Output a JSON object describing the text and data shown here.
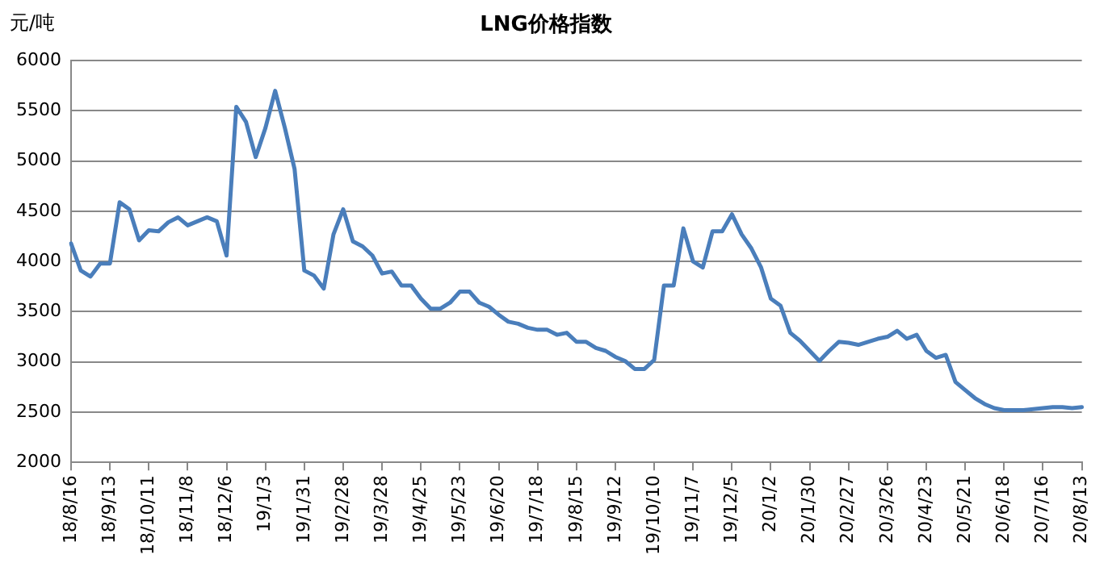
{
  "chart_data": {
    "type": "line",
    "title": "LNG价格指数",
    "ylabel": "元/吨",
    "categories": [
      "18/8/16",
      null,
      null,
      null,
      "18/9/13",
      null,
      null,
      null,
      "18/10/11",
      null,
      null,
      null,
      "18/11/8",
      null,
      null,
      null,
      "18/12/6",
      null,
      null,
      null,
      "19/1/3",
      null,
      null,
      null,
      "19/1/31",
      null,
      null,
      null,
      "19/2/28",
      null,
      null,
      null,
      "19/3/28",
      null,
      null,
      null,
      "19/4/25",
      null,
      null,
      null,
      "19/5/23",
      null,
      null,
      null,
      "19/6/20",
      null,
      null,
      null,
      "19/7/18",
      null,
      null,
      null,
      "19/8/15",
      null,
      null,
      null,
      "19/9/12",
      null,
      null,
      null,
      "19/10/10",
      null,
      null,
      null,
      "19/11/7",
      null,
      null,
      null,
      "19/12/5",
      null,
      null,
      null,
      "20/1/2",
      null,
      null,
      null,
      "20/1/30",
      null,
      null,
      null,
      "20/2/27",
      null,
      null,
      null,
      "20/3/26",
      null,
      null,
      null,
      "20/4/23",
      null,
      null,
      null,
      "20/5/21",
      null,
      null,
      null,
      "20/6/18",
      null,
      null,
      null,
      "20/7/16",
      null,
      null,
      null,
      "20/8/13"
    ],
    "series": [
      {
        "color": "#4a7ebb",
        "values": [
          4180,
          3910,
          3850,
          3980,
          3980,
          4590,
          4520,
          4210,
          4310,
          4300,
          4390,
          4440,
          4360,
          4400,
          4440,
          4400,
          4060,
          5540,
          5390,
          5040,
          5330,
          5700,
          5330,
          4920,
          3910,
          3860,
          3730,
          4270,
          4520,
          4200,
          4150,
          4060,
          3880,
          3900,
          3760,
          3760,
          3630,
          3530,
          3530,
          3590,
          3700,
          3700,
          3590,
          3550,
          3470,
          3400,
          3380,
          3340,
          3320,
          3320,
          3270,
          3290,
          3200,
          3200,
          3140,
          3110,
          3050,
          3010,
          2930,
          2930,
          3020,
          3760,
          3760,
          4330,
          4000,
          3940,
          4300,
          4300,
          4470,
          4270,
          4130,
          3940,
          3630,
          3560,
          3290,
          3210,
          3110,
          3010,
          3110,
          3200,
          3190,
          3170,
          3200,
          3230,
          3250,
          3310,
          3230,
          3270,
          3110,
          3040,
          3070,
          2800,
          2720,
          2640,
          2580,
          2540,
          2520,
          2520,
          2520,
          2530,
          2540,
          2550,
          2550,
          2540,
          2550
        ]
      }
    ],
    "ylim": [
      2000,
      6000
    ],
    "yticks": [
      2000,
      2500,
      3000,
      3500,
      4000,
      4500,
      5000,
      5500,
      6000
    ],
    "grid": "y",
    "legend": false,
    "marker": "none",
    "line_style": "solid"
  }
}
